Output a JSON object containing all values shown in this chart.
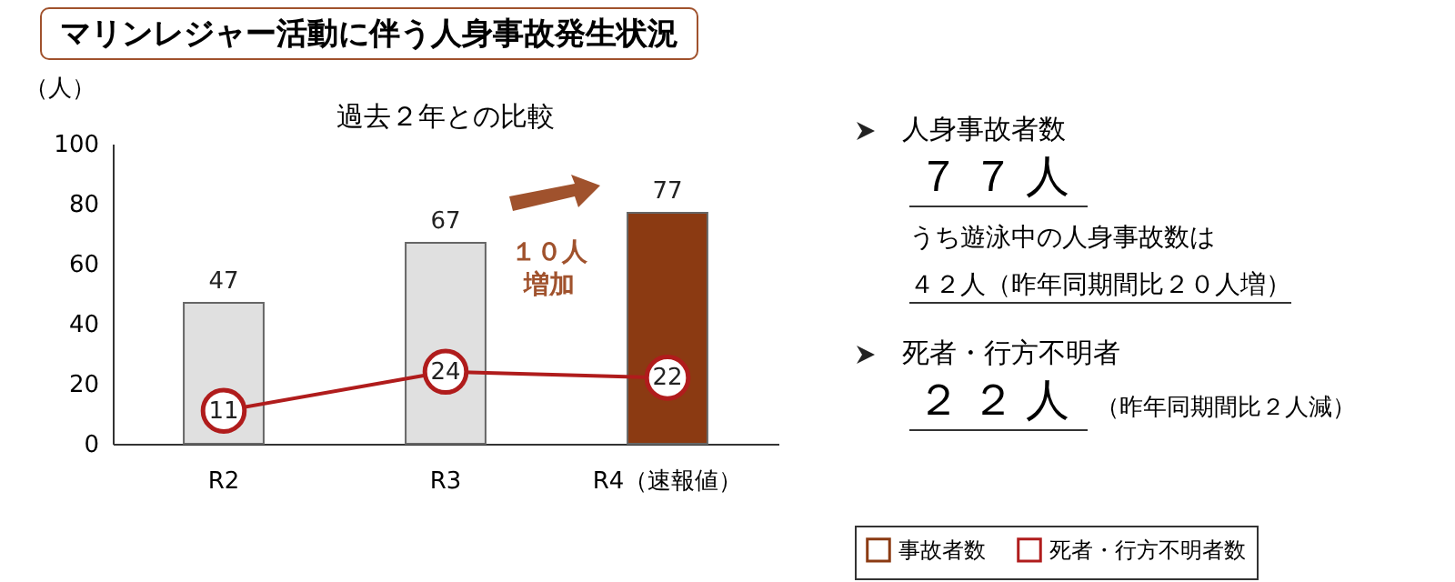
{
  "chart_data": [
    {
      "type": "bar",
      "title": "マリンレジャー活動に伴う人身事故発生状況",
      "subtitle": "過去２年との比較",
      "ylabel": "（人）",
      "categories": [
        "R2",
        "R3",
        "R4（速報値）"
      ],
      "series": [
        {
          "name": "事故者数",
          "color": "#8b3a12",
          "colors": [
            "#e0e0e0",
            "#e0e0e0",
            "#8b3a12"
          ],
          "values": [
            47,
            67,
            77
          ]
        },
        {
          "name": "死者・行方不明者数",
          "type": "line",
          "color": "#b01c1c",
          "values": [
            11,
            24,
            22
          ]
        }
      ],
      "ylim": [
        0,
        100
      ],
      "yticks": [
        0,
        20,
        40,
        60,
        80,
        100
      ],
      "grid": false,
      "legend": "bottom right",
      "marker": "circle",
      "data_labels": true,
      "annotations": [
        "１０人増加"
      ]
    },
    {
      "type": "other",
      "annotations": [
        "人身事故者数",
        "７７人",
        "うち遊泳中の人身事故数は",
        "４２人（昨年同期間比２０人増）",
        "死者・行方不明者",
        "２２人",
        "（昨年同期間比２人減）"
      ]
    }
  ]
}
